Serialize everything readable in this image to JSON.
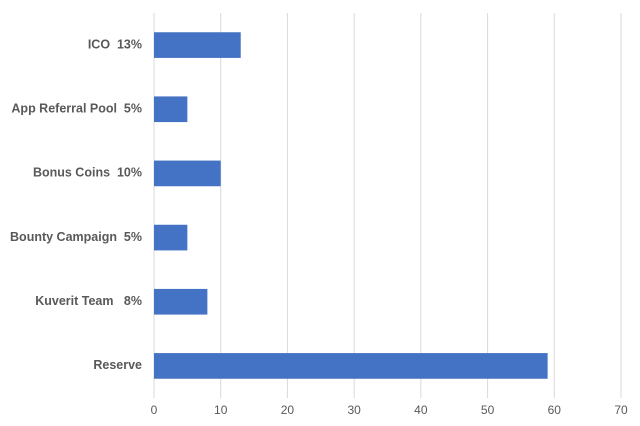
{
  "chart_data": {
    "type": "barh",
    "categories": [
      "ICO  13%",
      "App Referral Pool  5%",
      "Bonus Coins  10%",
      "Bounty Campaign  5%",
      "Kuverit Team   8%",
      "Reserve"
    ],
    "values": [
      13,
      5,
      10,
      5,
      8,
      59
    ],
    "color": "#4472c4",
    "xlim": [
      0,
      70
    ],
    "xticks": [
      0,
      10,
      20,
      30,
      40,
      50,
      60,
      70
    ],
    "grid": true
  }
}
